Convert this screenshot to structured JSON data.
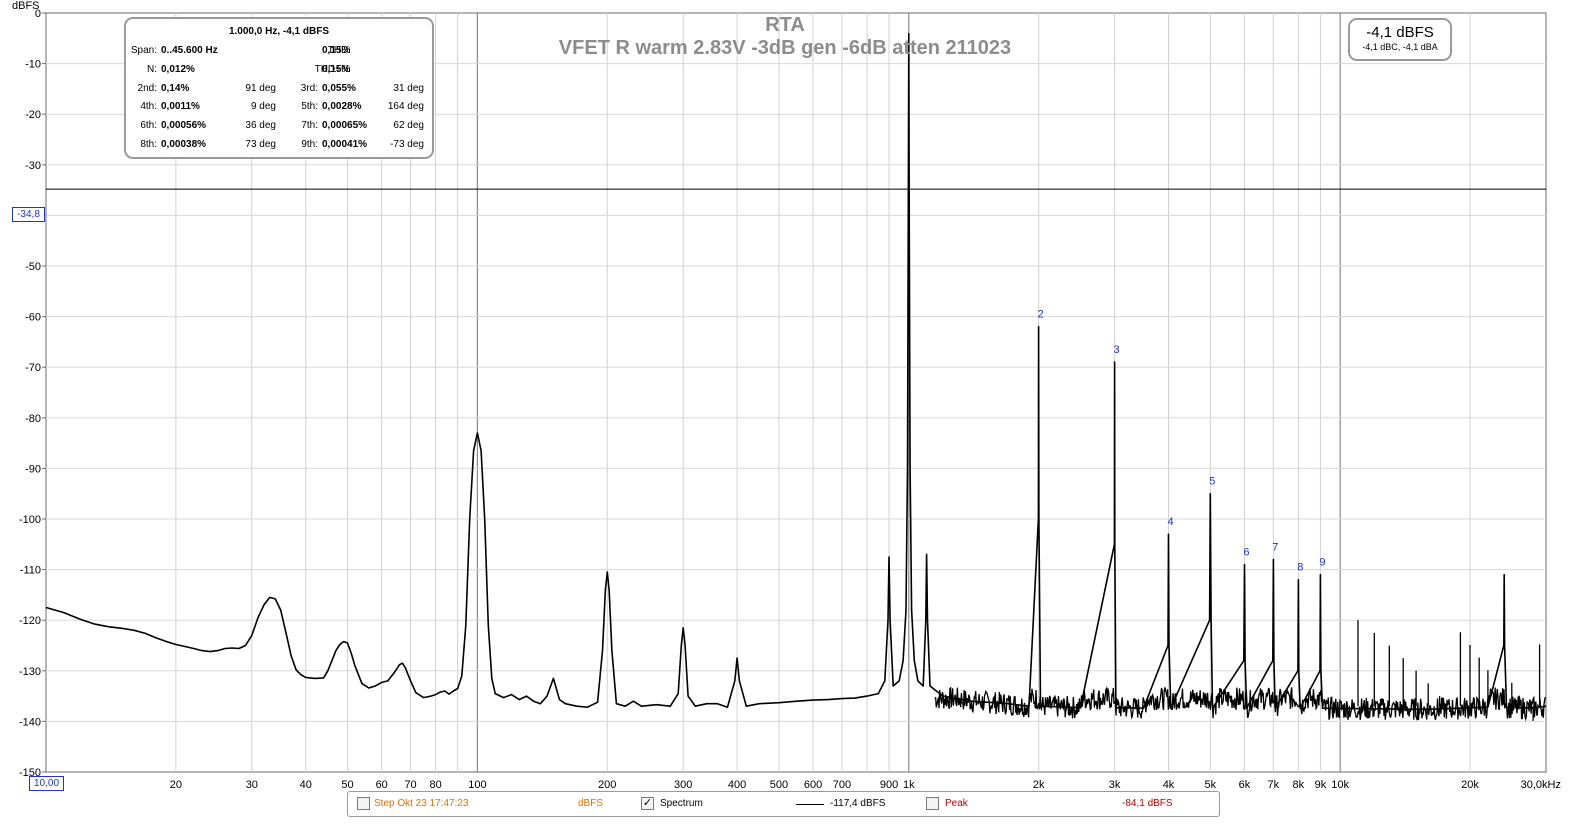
{
  "header": {
    "title_line1": "RTA",
    "title_line2": "VFET R warm 2.83V -3dB gen -6dB atten 211023",
    "unit_label": "dBFS"
  },
  "cursor": {
    "y_readout": "-34,8",
    "x_readout": "10,00",
    "y_value": -34.8
  },
  "stats_panel": {
    "header": "1.000,0 Hz, -4,1 dBFS",
    "span_label": "Span:",
    "span_value": "0..45.600 Hz",
    "thd_label": "THD:",
    "thd_value": "0,15%",
    "n_label": "N:",
    "n_value": "0,012%",
    "thdn_label": "THD+N:",
    "thdn_value": "0,15%",
    "rows": [
      {
        "l1": "2nd:",
        "v1": "0,14%",
        "p1": "91 deg",
        "l2": "3rd:",
        "v2": "0,055%",
        "p2": "31 deg"
      },
      {
        "l1": "4th:",
        "v1": "0,0011%",
        "p1": "9 deg",
        "l2": "5th:",
        "v2": "0,0028%",
        "p2": "164 deg"
      },
      {
        "l1": "6th:",
        "v1": "0,00056%",
        "p1": "36 deg",
        "l2": "7th:",
        "v2": "0,00065%",
        "p2": "62 deg"
      },
      {
        "l1": "8th:",
        "v1": "0,00038%",
        "p1": "73 deg",
        "l2": "9th:",
        "v2": "0,00041%",
        "p2": "-73 deg"
      }
    ]
  },
  "level_box": {
    "main": "-4,1 dBFS",
    "sub": "-4,1 dBC, -4,1 dBA"
  },
  "legend": {
    "step_label": "Step Okt 23 17:47:23",
    "step_unit": "dBFS",
    "step_checked": false,
    "spectrum_label": "Spectrum",
    "spectrum_checked": true,
    "spectrum_value": "-117,4 dBFS",
    "peak_label": "Peak",
    "peak_checked": false,
    "peak_value": "-84,1 dBFS",
    "colors": {
      "step": "#e07000",
      "peak": "#c00000",
      "spectrum": "#000000"
    }
  },
  "chart_data": {
    "type": "line",
    "x_scale": "log",
    "xlim": [
      10,
      30000
    ],
    "ylim": [
      -150,
      0
    ],
    "grid": true,
    "y_ticks": [
      0,
      -10,
      -20,
      -30,
      -40,
      -50,
      -60,
      -70,
      -80,
      -90,
      -100,
      -110,
      -120,
      -130,
      -140,
      -150
    ],
    "x_ticks": [
      {
        "v": 20,
        "t": "20"
      },
      {
        "v": 30,
        "t": "30"
      },
      {
        "v": 40,
        "t": "40"
      },
      {
        "v": 50,
        "t": "50"
      },
      {
        "v": 60,
        "t": "60"
      },
      {
        "v": 70,
        "t": "70"
      },
      {
        "v": 80,
        "t": "80"
      },
      {
        "v": 100,
        "t": "100"
      },
      {
        "v": 200,
        "t": "200"
      },
      {
        "v": 300,
        "t": "300"
      },
      {
        "v": 400,
        "t": "400"
      },
      {
        "v": 500,
        "t": "500"
      },
      {
        "v": 600,
        "t": "600"
      },
      {
        "v": 700,
        "t": "700"
      },
      {
        "v": 900,
        "t": "900"
      },
      {
        "v": 1000,
        "t": "1k"
      },
      {
        "v": 2000,
        "t": "2k"
      },
      {
        "v": 3000,
        "t": "3k"
      },
      {
        "v": 4000,
        "t": "4k"
      },
      {
        "v": 5000,
        "t": "5k"
      },
      {
        "v": 6000,
        "t": "6k"
      },
      {
        "v": 7000,
        "t": "7k"
      },
      {
        "v": 8000,
        "t": "8k"
      },
      {
        "v": 9000,
        "t": "9k"
      },
      {
        "v": 10000,
        "t": "10k"
      },
      {
        "v": 20000,
        "t": "20k"
      },
      {
        "v": 30000,
        "t": "30,0kHz"
      }
    ],
    "harmonic_markers": [
      {
        "label": "2",
        "x": 2000,
        "y": -62
      },
      {
        "label": "3",
        "x": 3000,
        "y": -69
      },
      {
        "label": "4",
        "x": 4000,
        "y": -103
      },
      {
        "label": "5",
        "x": 5000,
        "y": -95
      },
      {
        "label": "6",
        "x": 6000,
        "y": -109
      },
      {
        "label": "7",
        "x": 7000,
        "y": -108
      },
      {
        "label": "8",
        "x": 8000,
        "y": -112
      },
      {
        "label": "9",
        "x": 9000,
        "y": -111
      }
    ],
    "series": [
      {
        "points": [
          [
            10,
            -117.5
          ],
          [
            11,
            -118.5
          ],
          [
            12,
            -119.8
          ],
          [
            13,
            -120.8
          ],
          [
            14,
            -121.3
          ],
          [
            15,
            -121.6
          ],
          [
            16,
            -122.0
          ],
          [
            17,
            -122.6
          ],
          [
            18,
            -123.5
          ],
          [
            19,
            -124.2
          ],
          [
            20,
            -124.8
          ],
          [
            21,
            -125.2
          ],
          [
            22,
            -125.6
          ],
          [
            23,
            -126.0
          ],
          [
            24,
            -126.2
          ],
          [
            25,
            -126.0
          ],
          [
            26,
            -125.6
          ],
          [
            27,
            -125.5
          ],
          [
            28,
            -125.6
          ],
          [
            29,
            -125.0
          ],
          [
            30,
            -123.0
          ],
          [
            31,
            -119.5
          ],
          [
            32,
            -117.0
          ],
          [
            33,
            -115.5
          ],
          [
            34,
            -115.8
          ],
          [
            35,
            -118.0
          ],
          [
            36,
            -122.5
          ],
          [
            37,
            -127.0
          ],
          [
            38,
            -129.8
          ],
          [
            39,
            -130.8
          ],
          [
            40,
            -131.3
          ],
          [
            42,
            -131.5
          ],
          [
            44,
            -131.4
          ],
          [
            45,
            -130.0
          ],
          [
            46,
            -128.0
          ],
          [
            47,
            -126.0
          ],
          [
            48,
            -124.8
          ],
          [
            49,
            -124.2
          ],
          [
            50,
            -124.5
          ],
          [
            51,
            -126.5
          ],
          [
            52,
            -129.0
          ],
          [
            54,
            -132.5
          ],
          [
            56,
            -133.4
          ],
          [
            58,
            -133.0
          ],
          [
            60,
            -132.3
          ],
          [
            62,
            -132.0
          ],
          [
            64,
            -130.5
          ],
          [
            66,
            -128.8
          ],
          [
            67,
            -128.5
          ],
          [
            68,
            -129.3
          ],
          [
            70,
            -132.0
          ],
          [
            72,
            -134.3
          ],
          [
            75,
            -135.3
          ],
          [
            78,
            -135.0
          ],
          [
            80,
            -134.7
          ],
          [
            82,
            -134.2
          ],
          [
            84,
            -134.0
          ],
          [
            86,
            -134.6
          ],
          [
            88,
            -134.0
          ],
          [
            90,
            -133.5
          ],
          [
            92,
            -131.0
          ],
          [
            94,
            -121.0
          ],
          [
            96,
            -100.0
          ],
          [
            98,
            -86.5
          ],
          [
            100,
            -83.0
          ],
          [
            102,
            -86.5
          ],
          [
            104,
            -100.0
          ],
          [
            106,
            -121.0
          ],
          [
            108,
            -131.5
          ],
          [
            110,
            -134.5
          ],
          [
            115,
            -135.3
          ],
          [
            120,
            -134.7
          ],
          [
            125,
            -135.7
          ],
          [
            130,
            -135.0
          ],
          [
            135,
            -136.0
          ],
          [
            140,
            -136.5
          ],
          [
            145,
            -135.0
          ],
          [
            150,
            -131.5
          ],
          [
            155,
            -135.7
          ],
          [
            160,
            -136.5
          ],
          [
            170,
            -137.0
          ],
          [
            180,
            -137.2
          ],
          [
            190,
            -136.2
          ],
          [
            195,
            -126.0
          ],
          [
            198,
            -114.0
          ],
          [
            200,
            -110.5
          ],
          [
            202,
            -114.0
          ],
          [
            205,
            -126.0
          ],
          [
            210,
            -136.5
          ],
          [
            220,
            -137.0
          ],
          [
            230,
            -136.0
          ],
          [
            240,
            -137.0
          ],
          [
            260,
            -136.7
          ],
          [
            280,
            -137.0
          ],
          [
            292,
            -134.5
          ],
          [
            297,
            -125.0
          ],
          [
            300,
            -121.5
          ],
          [
            303,
            -125.0
          ],
          [
            308,
            -135.0
          ],
          [
            320,
            -137.0
          ],
          [
            340,
            -136.5
          ],
          [
            360,
            -136.5
          ],
          [
            380,
            -137.2
          ],
          [
            395,
            -132.0
          ],
          [
            400,
            -127.5
          ],
          [
            405,
            -132.0
          ],
          [
            420,
            -137.0
          ],
          [
            450,
            -136.5
          ],
          [
            500,
            -136.3
          ],
          [
            550,
            -136.0
          ],
          [
            600,
            -135.8
          ],
          [
            650,
            -135.7
          ],
          [
            700,
            -135.5
          ],
          [
            750,
            -135.4
          ],
          [
            800,
            -135.0
          ],
          [
            850,
            -134.5
          ],
          [
            880,
            -132.0
          ],
          [
            895,
            -120.0
          ],
          [
            900,
            -107.5
          ],
          [
            905,
            -120.0
          ],
          [
            920,
            -133.0
          ],
          [
            950,
            -132.0
          ],
          [
            970,
            -128.0
          ],
          [
            985,
            -118.0
          ],
          [
            993,
            -90.0
          ],
          [
            997,
            -45.0
          ],
          [
            1000,
            -4.1
          ],
          [
            1003,
            -45.0
          ],
          [
            1007,
            -90.0
          ],
          [
            1015,
            -118.0
          ],
          [
            1030,
            -128.0
          ],
          [
            1050,
            -132.0
          ],
          [
            1080,
            -133.0
          ],
          [
            1095,
            -120.0
          ],
          [
            1100,
            -107.0
          ],
          [
            1105,
            -120.0
          ],
          [
            1120,
            -133.0
          ],
          [
            1200,
            -135.0
          ],
          [
            1400,
            -136.0
          ],
          [
            1700,
            -136.5
          ],
          [
            1900,
            -137.0
          ],
          [
            1997,
            -100.0
          ],
          [
            2000,
            -62.0
          ],
          [
            2003,
            -100.0
          ],
          [
            2020,
            -137.0
          ],
          [
            2500,
            -137.3
          ],
          [
            2997,
            -105.0
          ],
          [
            3000,
            -69.0
          ],
          [
            3003,
            -105.0
          ],
          [
            3020,
            -137.3
          ],
          [
            3500,
            -137.4
          ],
          [
            3990,
            -125.0
          ],
          [
            4000,
            -103.0
          ],
          [
            4010,
            -125.0
          ],
          [
            4050,
            -137.4
          ],
          [
            4980,
            -120.0
          ],
          [
            5000,
            -95.0
          ],
          [
            5020,
            -120.0
          ],
          [
            5060,
            -137.4
          ],
          [
            5980,
            -128.0
          ],
          [
            6000,
            -109.0
          ],
          [
            6020,
            -128.0
          ],
          [
            6070,
            -137.4
          ],
          [
            6980,
            -128.0
          ],
          [
            7000,
            -108.0
          ],
          [
            7020,
            -128.0
          ],
          [
            7070,
            -137.4
          ],
          [
            7980,
            -130.0
          ],
          [
            8000,
            -112.0
          ],
          [
            8020,
            -130.0
          ],
          [
            8080,
            -137.4
          ],
          [
            8980,
            -130.0
          ],
          [
            9000,
            -111.0
          ],
          [
            9020,
            -130.0
          ],
          [
            9100,
            -137.4
          ],
          [
            12000,
            -137.5
          ],
          [
            16000,
            -137.6
          ],
          [
            22000,
            -137.2
          ],
          [
            23950,
            -125.0
          ],
          [
            24000,
            -111.0
          ],
          [
            24050,
            -125.0
          ],
          [
            24300,
            -137.2
          ],
          [
            28000,
            -137.4
          ],
          [
            30000,
            -137.0
          ]
        ]
      }
    ]
  }
}
